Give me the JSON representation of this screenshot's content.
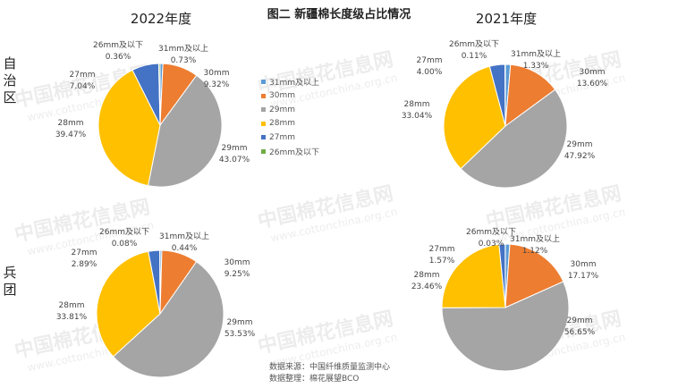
{
  "title": "图二 新疆棉长度级占比情况",
  "column_years": [
    "2022年度",
    "2021年度"
  ],
  "row_labels": [
    "自治区",
    "兵团"
  ],
  "legend_entries": [
    {
      "name": "31mm及以上",
      "color": "#5b9bd5"
    },
    {
      "name": "30mm",
      "color": "#ed7d31"
    },
    {
      "name": "29mm",
      "color": "#a5a5a5"
    },
    {
      "name": "28mm",
      "color": "#ffc000"
    },
    {
      "name": "27mm",
      "color": "#4472c4"
    },
    {
      "name": "26mm及以下",
      "color": "#70ad47"
    }
  ],
  "source_lines": [
    "数据来源：中国纤维质量监测中心",
    "数据整理：棉花展望BCO"
  ],
  "watermark_text": [
    "中国棉花信息网",
    "www.cottonchina.org.cn"
  ],
  "chart_data": [
    {
      "type": "pie",
      "row": "自治区",
      "year": "2022年度",
      "categories": [
        "31mm及以上",
        "30mm",
        "29mm",
        "28mm",
        "27mm",
        "26mm及以下"
      ],
      "values": [
        0.73,
        9.32,
        43.07,
        39.47,
        7.04,
        0.36
      ],
      "labels": [
        "0.73%",
        "9.32%",
        "43.07%",
        "39.47%",
        "7.04%",
        "0.36%"
      ]
    },
    {
      "type": "pie",
      "row": "自治区",
      "year": "2021年度",
      "categories": [
        "31mm及以上",
        "30mm",
        "29mm",
        "28mm",
        "27mm",
        "26mm及以下"
      ],
      "values": [
        1.33,
        13.6,
        47.92,
        33.04,
        4.0,
        0.11
      ],
      "labels": [
        "1.33%",
        "13.60%",
        "47.92%",
        "33.04%",
        "4.00%",
        "0.11%"
      ]
    },
    {
      "type": "pie",
      "row": "兵团",
      "year": "2022年度",
      "categories": [
        "31mm及以上",
        "30mm",
        "29mm",
        "28mm",
        "27mm",
        "26mm及以下"
      ],
      "values": [
        0.44,
        9.25,
        53.53,
        33.81,
        2.89,
        0.08
      ],
      "labels": [
        "0.44%",
        "9.25%",
        "53.53%",
        "33.81%",
        "2.89%",
        "0.08%"
      ]
    },
    {
      "type": "pie",
      "row": "兵团",
      "year": "2021年度",
      "categories": [
        "31mm及以上",
        "30mm",
        "29mm",
        "28mm",
        "27mm",
        "26mm及以下"
      ],
      "values": [
        1.12,
        17.17,
        56.65,
        23.46,
        1.57,
        0.03
      ],
      "labels": [
        "1.12%",
        "17.17%",
        "56.65%",
        "23.46%",
        "1.57%",
        "0.03%"
      ]
    }
  ]
}
